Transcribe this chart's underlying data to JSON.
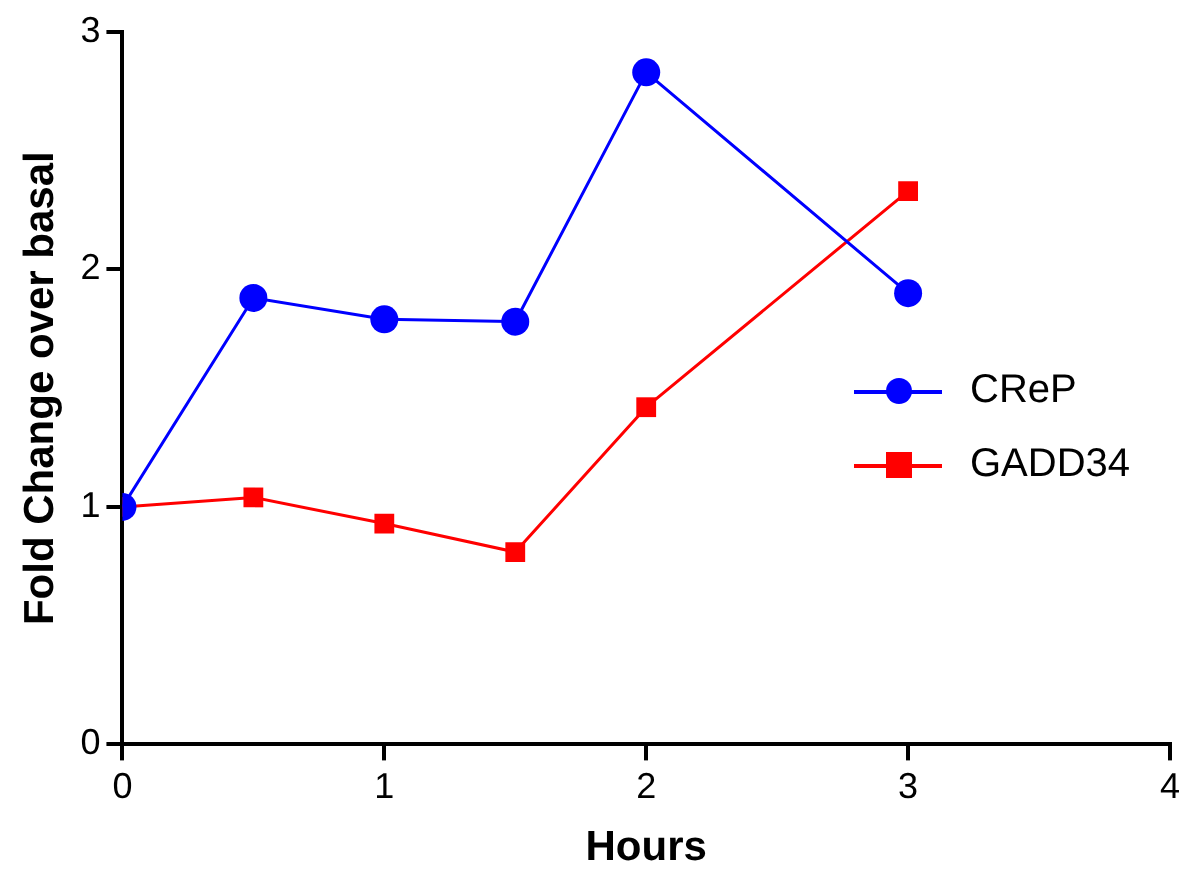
{
  "chart_data": {
    "type": "line",
    "xlabel": "Hours",
    "ylabel": "Fold Change over basal",
    "x": [
      0,
      0.5,
      1,
      1.5,
      2,
      3
    ],
    "series": [
      {
        "name": "CReP",
        "color": "#0000ff",
        "marker": "circle",
        "values": [
          1.0,
          1.88,
          1.79,
          1.78,
          2.83,
          1.9
        ]
      },
      {
        "name": "GADD34",
        "color": "#ff0000",
        "marker": "square",
        "values": [
          1.0,
          1.04,
          0.93,
          0.81,
          1.42,
          2.33
        ]
      }
    ],
    "xlim": [
      0,
      4
    ],
    "xticks": [
      0,
      1,
      2,
      3,
      4
    ],
    "ylim": [
      0,
      3
    ],
    "yticks": [
      0,
      1,
      2,
      3
    ],
    "grid": false,
    "legend": "right"
  }
}
